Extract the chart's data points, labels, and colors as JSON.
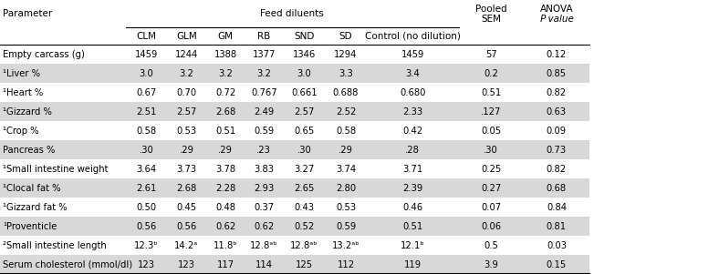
{
  "col_bounds": [
    0.0,
    0.175,
    0.232,
    0.287,
    0.34,
    0.394,
    0.452,
    0.51,
    0.638,
    0.728,
    0.82
  ],
  "rows": [
    [
      "Empty carcass (g)",
      "1459",
      "1244",
      "1388",
      "1377",
      "1346",
      "1294",
      "1459",
      "57",
      "0.12"
    ],
    [
      "¹Liver %",
      "3.0",
      "3.2",
      "3.2",
      "3.2",
      "3.0",
      "3.3",
      "3.4",
      "0.2",
      "0.85"
    ],
    [
      "¹Heart %",
      "0.67",
      "0.70",
      "0.72",
      "0.767",
      "0.661",
      "0.688",
      "0.680",
      "0.51",
      "0.82"
    ],
    [
      "¹Gizzard %",
      "2.51",
      "2.57",
      "2.68",
      "2.49",
      "2.57",
      "2.52",
      "2.33",
      ".127",
      "0.63"
    ],
    [
      "¹Crop %",
      "0.58",
      "0.53",
      "0.51",
      "0.59",
      "0.65",
      "0.58",
      "0.42",
      "0.05",
      "0.09"
    ],
    [
      "Pancreas %",
      ".30",
      ".29",
      ".29",
      ".23",
      ".30",
      ".29",
      ".28",
      ".30",
      "0.73"
    ],
    [
      "¹Small intestine weight",
      "3.64",
      "3.73",
      "3.78",
      "3.83",
      "3.27",
      "3.74",
      "3.71",
      "0.25",
      "0.82"
    ],
    [
      "¹Clocal fat %",
      "2.61",
      "2.68",
      "2.28",
      "2.93",
      "2.65",
      "2.80",
      "2.39",
      "0.27",
      "0.68"
    ],
    [
      "¹Gizzard fat %",
      "0.50",
      "0.45",
      "0.48",
      "0.37",
      "0.43",
      "0.53",
      "0.46",
      "0.07",
      "0.84"
    ],
    [
      "¹Proventicle",
      "0.56",
      "0.56",
      "0.62",
      "0.62",
      "0.52",
      "0.59",
      "0.51",
      "0.06",
      "0.81"
    ],
    [
      "²Small intestine length",
      "12.3ᵇ",
      "14.2ᵃ",
      "11.8ᵇ",
      "12.8ᵃᵇ",
      "12.8ᵃᵇ",
      "13.2ᵃᵇ",
      "12.1ᵇ",
      "0.5",
      "0.03"
    ],
    [
      "Serum cholesterol (mmol/dl)",
      "123",
      "123",
      "117",
      "114",
      "125",
      "112",
      "119",
      "3.9",
      "0.15"
    ]
  ],
  "shaded_rows": [
    1,
    3,
    5,
    7,
    9,
    11
  ],
  "bg_color": "#ffffff",
  "shade_color": "#d8d8d8",
  "font_size": 7.2,
  "header_font_size": 7.5,
  "sub_headers": [
    "CLM",
    "GLM",
    "GM",
    "RB",
    "SND",
    "SD",
    "Control (no dilution)"
  ]
}
